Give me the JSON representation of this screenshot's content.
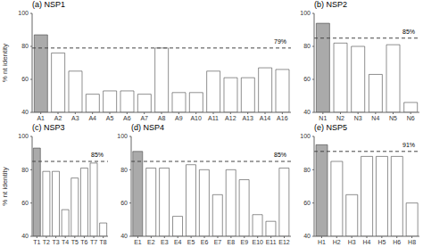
{
  "chart_data": [
    {
      "type": "bar",
      "title": "(a) NSP1",
      "ylabel": "% nt identity",
      "categories": [
        "A1",
        "A2",
        "A3",
        "A4",
        "A5",
        "A6",
        "A7",
        "A8",
        "A9",
        "A10",
        "A11",
        "A12",
        "A13",
        "A14",
        "A16"
      ],
      "values": [
        87,
        76,
        65,
        51,
        53,
        53,
        51,
        79,
        52,
        52,
        65,
        61,
        61,
        67,
        66
      ],
      "colors": [
        "#aaaaaa",
        "#ffffff",
        "#ffffff",
        "#ffffff",
        "#ffffff",
        "#ffffff",
        "#ffffff",
        "#ffffff",
        "#ffffff",
        "#ffffff",
        "#ffffff",
        "#ffffff",
        "#ffffff",
        "#ffffff",
        "#ffffff"
      ],
      "reference_line": {
        "value": 79,
        "label": "79%"
      },
      "ylim": [
        40,
        100
      ],
      "yticks": [
        40,
        60,
        80,
        100
      ]
    },
    {
      "type": "bar",
      "title": "(b) NSP2",
      "categories": [
        "N1",
        "N2",
        "N3",
        "N4",
        "N5",
        "N6"
      ],
      "values": [
        94,
        82,
        80,
        63,
        81,
        46
      ],
      "colors": [
        "#aaaaaa",
        "#ffffff",
        "#ffffff",
        "#ffffff",
        "#ffffff",
        "#ffffff"
      ],
      "reference_line": {
        "value": 85,
        "label": "85%"
      },
      "ylim": [
        40,
        100
      ],
      "yticks": [
        40,
        60,
        80,
        100
      ]
    },
    {
      "type": "bar",
      "title": "(c) NSP3",
      "ylabel": "% nt identity",
      "categories": [
        "T1",
        "T2",
        "T3",
        "T4",
        "T5",
        "T6",
        "T7",
        "T8"
      ],
      "values": [
        93,
        79,
        79,
        56,
        75,
        81,
        84,
        48
      ],
      "colors": [
        "#aaaaaa",
        "#ffffff",
        "#ffffff",
        "#ffffff",
        "#ffffff",
        "#ffffff",
        "#ffffff",
        "#ffffff"
      ],
      "reference_line": {
        "value": 85,
        "label": "85%"
      },
      "ylim": [
        40,
        100
      ],
      "yticks": [
        40,
        60,
        80,
        100
      ]
    },
    {
      "type": "bar",
      "title": "(d) NSP4",
      "categories": [
        "E1",
        "E2",
        "E3",
        "E4",
        "E5",
        "E6",
        "E7",
        "E8",
        "E9",
        "E10",
        "E11",
        "E12"
      ],
      "values": [
        91,
        81,
        81,
        52,
        83,
        80,
        65,
        80,
        74,
        53,
        49,
        81
      ],
      "colors": [
        "#aaaaaa",
        "#ffffff",
        "#ffffff",
        "#ffffff",
        "#ffffff",
        "#ffffff",
        "#ffffff",
        "#ffffff",
        "#ffffff",
        "#ffffff",
        "#ffffff",
        "#ffffff"
      ],
      "reference_line": {
        "value": 85,
        "label": "85%"
      },
      "ylim": [
        40,
        100
      ],
      "yticks": [
        40,
        60,
        80,
        100
      ]
    },
    {
      "type": "bar",
      "title": "(e) NSP5",
      "categories": [
        "H1",
        "H2",
        "H3",
        "H4",
        "H5",
        "H6",
        "H8"
      ],
      "values": [
        95,
        85,
        65,
        88,
        88,
        88,
        60
      ],
      "colors": [
        "#aaaaaa",
        "#ffffff",
        "#ffffff",
        "#ffffff",
        "#ffffff",
        "#ffffff",
        "#ffffff"
      ],
      "reference_line": {
        "value": 91,
        "label": "91%"
      },
      "ylim": [
        40,
        100
      ],
      "yticks": [
        40,
        60,
        80,
        100
      ]
    }
  ]
}
